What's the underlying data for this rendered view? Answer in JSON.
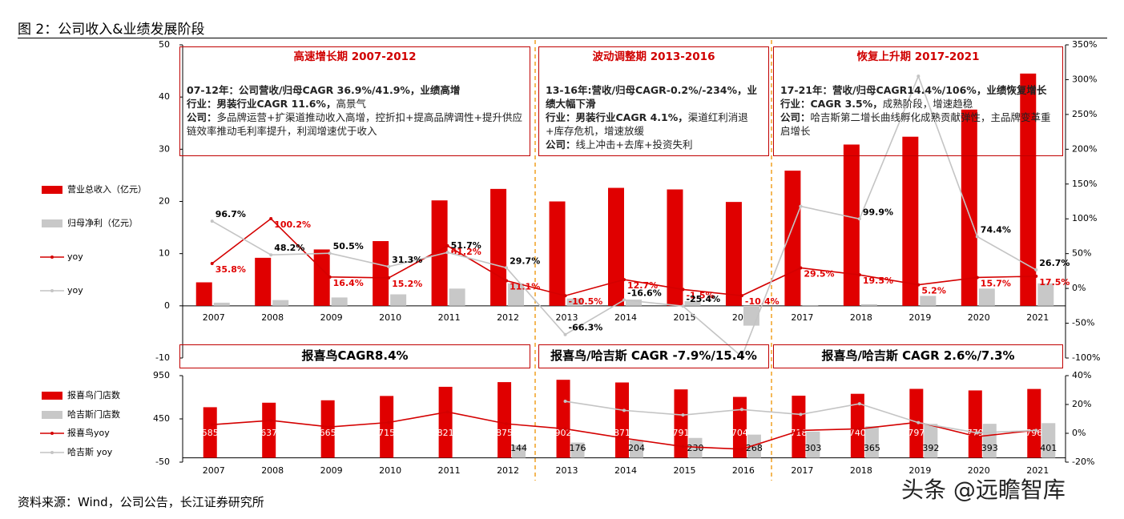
{
  "title": "图 2：公司收入&业绩发展阶段",
  "source": "资料来源：Wind，公司公告，长江证券研究所",
  "watermark": "头条 @远瞻智库",
  "periods": [
    {
      "title": "高速增长期 2007-2012",
      "lines": [
        {
          "bold": "07-12年：公司营收/归母CAGR 36.9%/41.9%，业绩高增"
        },
        {
          "bold": "行业：男装行业CAGR 11.6%，",
          "text": "高景气"
        },
        {
          "bold": "公司：",
          "text": "多品牌运营+扩渠道推动收入高增，控折扣+提高品牌调性+提升供应链效率推动毛利率提升，利润增速优于收入"
        }
      ]
    },
    {
      "title": "波动调整期 2013-2016",
      "lines": [
        {
          "bold": "13-16年:营收/归母CAGR-0.2%/-234%，业绩大幅下滑"
        },
        {
          "bold": "行业：男装行业CAGR 4.1%，",
          "text": "渠道红利消退+库存危机，增速放缓"
        },
        {
          "bold": "公司：",
          "text": "线上冲击+去库+投资失利"
        }
      ]
    },
    {
      "title": "恢复上升期 2017-2021",
      "lines": [
        {
          "bold": "17-21年：营收/归母CAGR14.4%/106%，业绩恢复增长"
        },
        {
          "bold": "行业：CAGR 3.5%，",
          "text": "成熟阶段，增速趋稳"
        },
        {
          "bold": "公司：",
          "text": "哈吉斯第二增长曲线孵化成熟贡献弹性，主品牌变革重启增长"
        }
      ]
    }
  ],
  "store_notes": [
    "报喜鸟CAGR8.4%",
    "报喜鸟/哈吉斯 CAGR -7.9%/15.4%",
    "报喜鸟/哈吉斯 CAGR 2.6%/7.3%"
  ],
  "chart_data": [
    {
      "type": "combo",
      "categories": [
        "2007",
        "2008",
        "2009",
        "2010",
        "2011",
        "2012",
        "2013",
        "2014",
        "2015",
        "2016",
        "2017",
        "2018",
        "2019",
        "2020",
        "2021"
      ],
      "ylim": [
        -10,
        50
      ],
      "yticks": [
        -10,
        0,
        10,
        20,
        30,
        40,
        50
      ],
      "y2lim": [
        -100,
        350
      ],
      "y2ticks": [
        {
          "value": -100,
          "label": "-100%"
        },
        {
          "value": -50,
          "label": "-50%"
        },
        {
          "value": 0,
          "label": "0%"
        },
        {
          "value": 50,
          "label": "50%"
        },
        {
          "value": 100,
          "label": "100%"
        },
        {
          "value": 150,
          "label": "150%"
        },
        {
          "value": 200,
          "label": "200%"
        },
        {
          "value": 250,
          "label": "250%"
        },
        {
          "value": 300,
          "label": "300%"
        },
        {
          "value": 350,
          "label": "350%"
        }
      ],
      "series": [
        {
          "name": "营业总收入（亿元）",
          "type": "bar",
          "color": "#e00000",
          "values": [
            4.5,
            9.2,
            10.8,
            12.4,
            20.2,
            22.4,
            20.0,
            22.6,
            22.3,
            19.9,
            25.9,
            30.9,
            32.4,
            37.6,
            44.5
          ]
        },
        {
          "name": "归母净利（亿元）",
          "type": "bar",
          "color": "#c8c8c8",
          "values": [
            0.6,
            1.1,
            1.6,
            2.2,
            3.3,
            4.3,
            1.4,
            1.2,
            0.9,
            -3.8,
            0.1,
            0.3,
            1.9,
            3.3,
            4.3
          ]
        },
        {
          "name": "yoy",
          "type": "line",
          "axis": "y2",
          "color": "#d40000",
          "values": [
            35.8,
            100.2,
            16.4,
            15.2,
            61.2,
            11.1,
            -10.5,
            12.7,
            -1.5,
            -10.4,
            29.5,
            19.5,
            5.2,
            15.7,
            17.5
          ],
          "value_labels": [
            "35.8%",
            "100.2%",
            "16.4%",
            "15.2%",
            "61.2%",
            "11.1%",
            "-10.5%",
            "12.7%",
            "-1.5%",
            "-10.4%",
            "29.5%",
            "19.5%",
            "5.2%",
            "15.7%",
            "17.5%"
          ]
        },
        {
          "name": "yoy",
          "type": "line",
          "axis": "y2",
          "color": "#c4c4c4",
          "values": [
            96.7,
            48.2,
            50.5,
            31.3,
            51.7,
            29.7,
            -66.3,
            -16.6,
            -25.4,
            -98,
            118,
            99.9,
            305,
            74.4,
            26.7
          ],
          "value_labels": [
            "96.7%",
            "48.2%",
            "50.5%",
            "31.3%",
            "51.7%",
            "29.7%",
            "-66.3%",
            "-16.6%",
            "-25.4%",
            null,
            null,
            "99.9%",
            null,
            "74.4%",
            "26.7%"
          ]
        }
      ]
    },
    {
      "type": "combo",
      "categories": [
        "2007",
        "2008",
        "2009",
        "2010",
        "2011",
        "2012",
        "2013",
        "2014",
        "2015",
        "2016",
        "2017",
        "2018",
        "2019",
        "2020",
        "2021"
      ],
      "ylim": [
        -50,
        950
      ],
      "yticks": [
        -50,
        450,
        950
      ],
      "y2lim": [
        -20,
        40
      ],
      "y2ticks": [
        {
          "value": -20,
          "label": "-20%"
        },
        {
          "value": 0,
          "label": "0%"
        },
        {
          "value": 20,
          "label": "20%"
        },
        {
          "value": 40,
          "label": "40%"
        }
      ],
      "series": [
        {
          "name": "报喜鸟门店数",
          "type": "bar",
          "color": "#e00000",
          "label_color": "#ffffff",
          "values": [
            585,
            637,
            665,
            715,
            821,
            875,
            902,
            871,
            791,
            704,
            718,
            740,
            797,
            779,
            796
          ]
        },
        {
          "name": "哈吉斯门店数",
          "type": "bar",
          "color": "#c8c8c8",
          "label_color": "#000000",
          "values": [
            null,
            null,
            null,
            null,
            null,
            144,
            176,
            204,
            230,
            268,
            303,
            365,
            392,
            393,
            401
          ]
        },
        {
          "name": "报喜鸟yoy",
          "type": "line",
          "axis": "y2",
          "color": "#d40000",
          "values": [
            6,
            8.9,
            4.4,
            7.5,
            14.8,
            6.6,
            3.1,
            -3.4,
            -9.2,
            -11,
            2,
            3.1,
            7.7,
            -2.3,
            2.2
          ]
        },
        {
          "name": "哈吉斯 yoy",
          "type": "line",
          "axis": "y2",
          "color": "#c4c4c4",
          "values": [
            null,
            null,
            null,
            null,
            null,
            null,
            22.2,
            15.9,
            12.7,
            16.5,
            13.1,
            20.5,
            7.4,
            0.3,
            2.0
          ]
        }
      ]
    }
  ]
}
